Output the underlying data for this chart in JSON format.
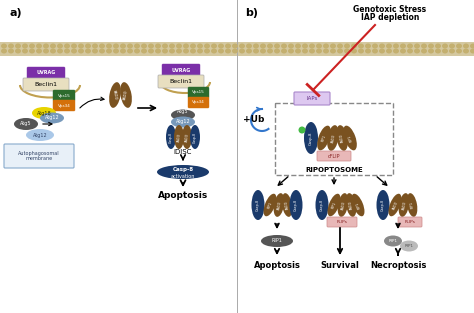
{
  "bg_color": "#ffffff",
  "panel_a_label": "a)",
  "panel_b_label": "b)",
  "title_genotoxic": "Genotoxic Stress",
  "title_iap": "IAP depletion",
  "label_autophagosomal": "Autophagosomal\nmembrane",
  "label_idisc": "iDISC",
  "label_casp8_activation": "Casp-8\nactivation",
  "label_apoptosis_a": "Apoptosis",
  "label_ripoptosome": "RIPOPTOSOME",
  "label_apoptosis_b": "Apoptosis",
  "label_survival": "Survival",
  "label_necroptosis": "Necroptosis",
  "label_ub": "+Ub",
  "label_iaps": "IAPs",
  "label_cflip": "cFLIP",
  "color_navy": "#1a3a6b",
  "color_brown": "#7a5220",
  "color_green": "#2d6b2d",
  "color_orange": "#d4700a",
  "color_yellow": "#e8d400",
  "color_purple": "#7b2fa8",
  "color_gray": "#888888",
  "color_lightblue": "#7799bb",
  "color_pink": "#e8b8b8",
  "color_darkgray": "#555555",
  "color_mem": "#d4c8a0"
}
